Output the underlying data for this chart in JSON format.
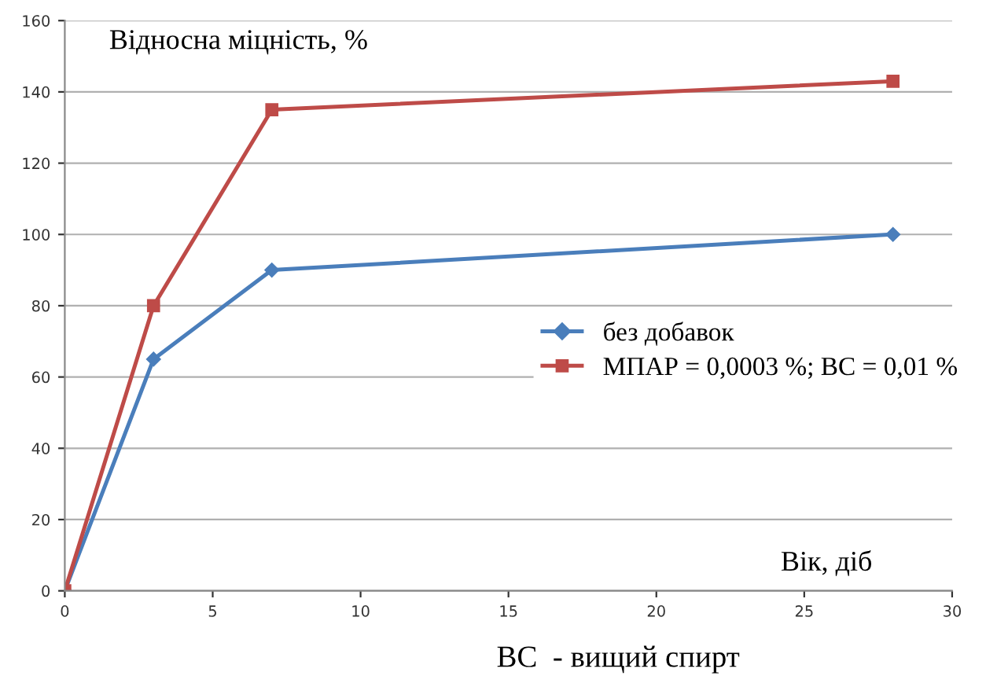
{
  "chart_data": {
    "type": "line",
    "ylabel": "Відносна міцність, %",
    "xlabel": "Вік, діб",
    "annotations": [
      "ВС  - вищий спирт"
    ],
    "xlim": [
      0,
      30
    ],
    "xticks": [
      0,
      5,
      10,
      15,
      20,
      25,
      30
    ],
    "ylim": [
      0,
      160
    ],
    "yticks": [
      0,
      20,
      40,
      60,
      80,
      100,
      120,
      140,
      160
    ],
    "grid": "y",
    "legend": "right",
    "series": [
      {
        "name": "без добавок",
        "color": "#4a7ebb",
        "x": [
          0,
          3,
          7,
          28
        ],
        "values": [
          0,
          65,
          90,
          100
        ],
        "marker": "diamond"
      },
      {
        "name": "МПАР = 0,0003 %; ВС = 0,01 %",
        "color": "#be4b48",
        "x": [
          0,
          3,
          7,
          28
        ],
        "values": [
          0,
          80,
          135,
          143
        ],
        "marker": "square"
      }
    ]
  }
}
